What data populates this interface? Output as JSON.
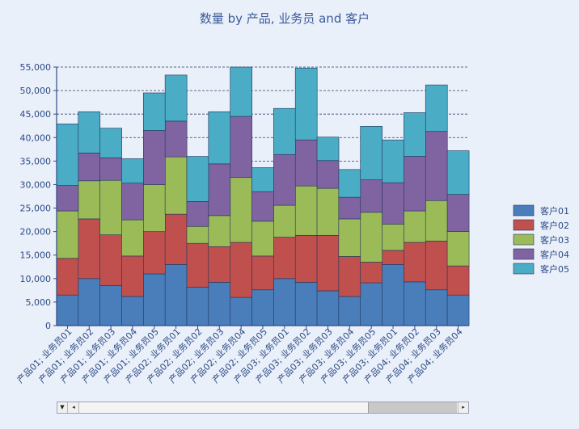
{
  "chart_data": {
    "type": "bar",
    "stacked": true,
    "title": "数量 by 产品, 业务员 and 客户",
    "xlabel": "",
    "ylabel": "",
    "ylim": [
      0,
      55000
    ],
    "yticks": [
      "0",
      "5,000",
      "10,000",
      "15,000",
      "20,000",
      "25,000",
      "30,000",
      "35,000",
      "40,000",
      "45,000",
      "50,000",
      "55,000"
    ],
    "grid": true,
    "legend_position": "right",
    "categories": [
      "产品01; 业务员01",
      "产品01; 业务员02",
      "产品01; 业务员03",
      "产品01; 业务员04",
      "产品01; 业务员05",
      "产品02; 业务员01",
      "产品02; 业务员02",
      "产品02; 业务员03",
      "产品02; 业务员04",
      "产品02; 业务员05",
      "产品03; 业务员01",
      "产品03; 业务员02",
      "产品03; 业务员03",
      "产品03; 业务员04",
      "产品03; 业务员05",
      "产品03; 业务员01",
      "产品04; 业务员02",
      "产品04; 业务员03",
      "产品04; 业务员04"
    ],
    "series": [
      {
        "name": "客户01",
        "color": "#4a7ebb",
        "values": [
          6500,
          10000,
          8500,
          6200,
          11000,
          13000,
          8200,
          9200,
          6000,
          7600,
          10000,
          9200,
          7400,
          6200,
          9100,
          13000,
          9300,
          7600,
          6500
        ]
      },
      {
        "name": "客户02",
        "color": "#c0504d",
        "values": [
          7800,
          12700,
          10800,
          8600,
          9000,
          10700,
          9300,
          7600,
          11700,
          7200,
          8800,
          10000,
          11800,
          8500,
          4400,
          3000,
          8400,
          10400,
          6200
        ]
      },
      {
        "name": "客户03",
        "color": "#9bbb59",
        "values": [
          10100,
          8100,
          11600,
          7700,
          10000,
          12200,
          3600,
          6600,
          13800,
          7400,
          6800,
          10500,
          10000,
          8000,
          10600,
          5600,
          6700,
          8600,
          7300
        ]
      },
      {
        "name": "客户04",
        "color": "#8064a2",
        "values": [
          5400,
          5900,
          4800,
          7800,
          11500,
          7600,
          5300,
          11000,
          13000,
          6300,
          10800,
          9800,
          5900,
          4600,
          6900,
          8800,
          11600,
          14700,
          7900
        ]
      },
      {
        "name": "客户05",
        "color": "#4bacc6",
        "values": [
          13100,
          8800,
          6300,
          5200,
          8000,
          9800,
          9600,
          11100,
          10500,
          5100,
          9800,
          15300,
          5000,
          5900,
          11400,
          9100,
          9300,
          9900,
          9300
        ]
      }
    ]
  }
}
